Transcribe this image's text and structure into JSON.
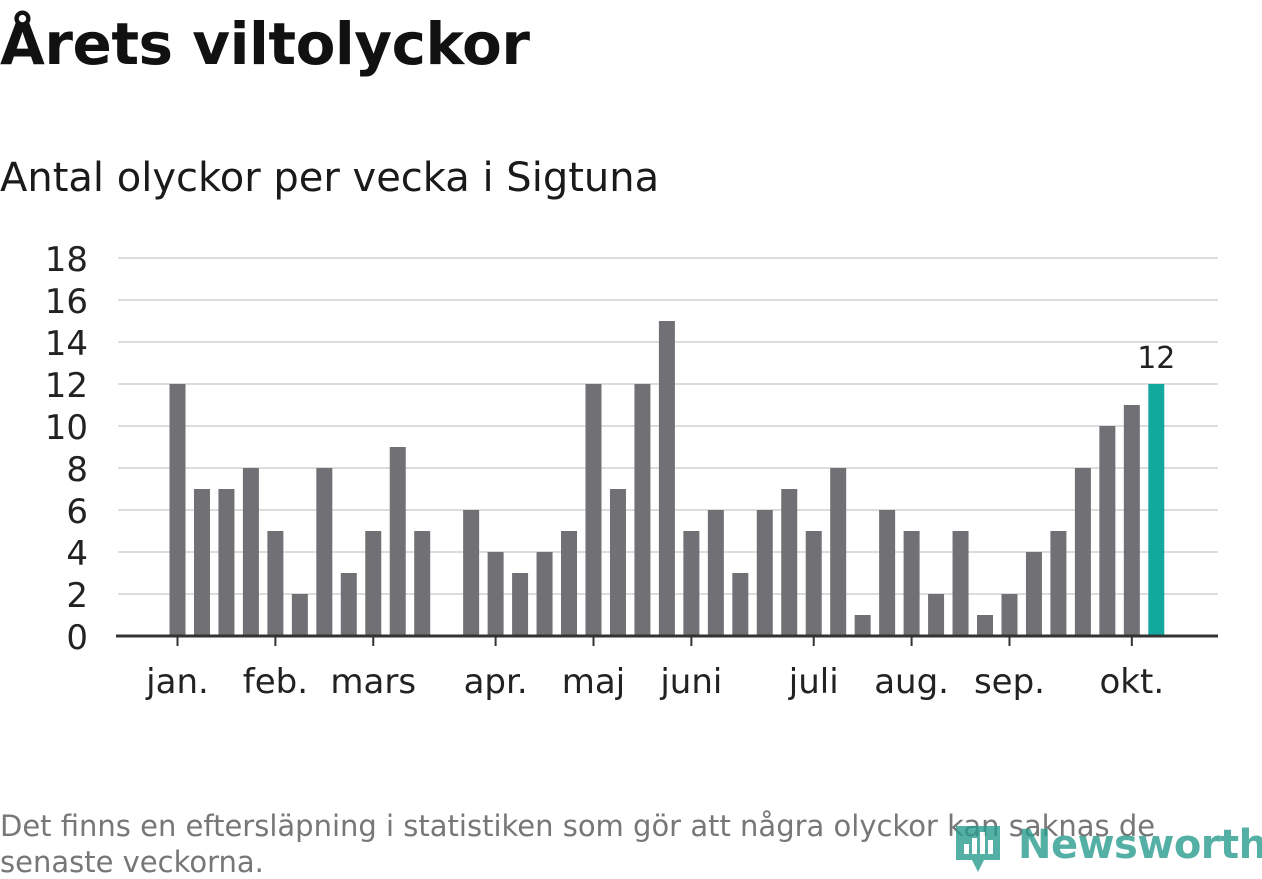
{
  "title": "Årets viltolyckor",
  "subtitle": "Antal olyckor per vecka i Sigtuna",
  "note": "Det finns en eftersläpning i statistiken som gör att några olyckor kan saknas de senaste veckorna.",
  "logo": {
    "text": "Newsworthy",
    "icon": "bar-chart-pin-icon"
  },
  "colors": {
    "bar": "#717075",
    "highlight": "#13a89e",
    "grid": "#dcdcdc",
    "axis": "#333333",
    "text": "#222222"
  },
  "chart_data": {
    "type": "bar",
    "title": "Antal olyckor per vecka i Sigtuna",
    "xlabel": "",
    "ylabel": "",
    "ylim": [
      0,
      18
    ],
    "yticks": [
      0,
      2,
      4,
      6,
      8,
      10,
      12,
      14,
      16,
      18
    ],
    "grid": true,
    "values": [
      12,
      7,
      7,
      8,
      5,
      2,
      8,
      3,
      5,
      9,
      5,
      0,
      6,
      4,
      3,
      4,
      5,
      12,
      7,
      12,
      15,
      5,
      6,
      3,
      6,
      7,
      5,
      8,
      1,
      6,
      5,
      2,
      5,
      1,
      2,
      4,
      5,
      8,
      10,
      11,
      12
    ],
    "month_labels": [
      {
        "label": "jan.",
        "week": 0
      },
      {
        "label": "feb.",
        "week": 4
      },
      {
        "label": "mars",
        "week": 8
      },
      {
        "label": "apr.",
        "week": 13
      },
      {
        "label": "maj",
        "week": 17
      },
      {
        "label": "juni",
        "week": 21
      },
      {
        "label": "juli",
        "week": 26
      },
      {
        "label": "aug.",
        "week": 30
      },
      {
        "label": "sep.",
        "week": 34
      },
      {
        "label": "okt.",
        "week": 39
      }
    ],
    "highlight_index": 40,
    "highlight_label": "12"
  }
}
